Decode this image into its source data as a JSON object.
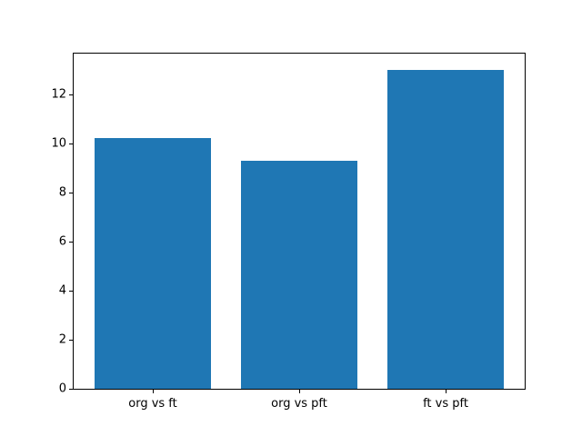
{
  "chart_data": {
    "type": "bar",
    "categories": [
      "org vs ft",
      "org vs pft",
      "ft vs pft"
    ],
    "values": [
      10.2,
      9.3,
      13.0
    ],
    "title": "",
    "xlabel": "",
    "ylabel": "",
    "ylim": [
      0,
      13.65
    ],
    "yticks": [
      0,
      2,
      4,
      6,
      8,
      10,
      12
    ],
    "bar_color": "#1f77b4",
    "axis_color": "#000000",
    "background_color": "#ffffff",
    "bar_width_fraction": 0.8,
    "grid": false,
    "legend": null
  }
}
